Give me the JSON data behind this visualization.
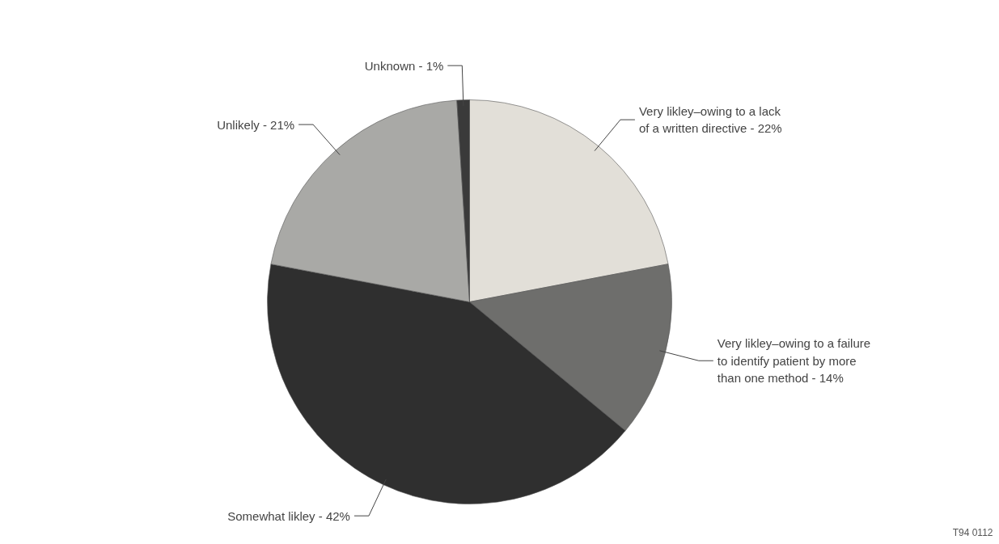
{
  "chart_data": {
    "type": "pie",
    "categories": [
      "Very likley–owing to a lack\nof a written directive - 22%",
      "Very likley–owing to a failure\nto identify patient by more\nthan one method - 14%",
      "Somewhat likley - 42%",
      "Unlikely - 21%",
      "Unknown - 1%"
    ],
    "values": [
      22,
      14,
      42,
      21,
      1
    ],
    "colors": [
      "#e2dfd8",
      "#6e6e6c",
      "#2f2f2f",
      "#a9a9a6",
      "#3a3a3a"
    ],
    "annotations": [
      "T94 0112"
    ]
  }
}
